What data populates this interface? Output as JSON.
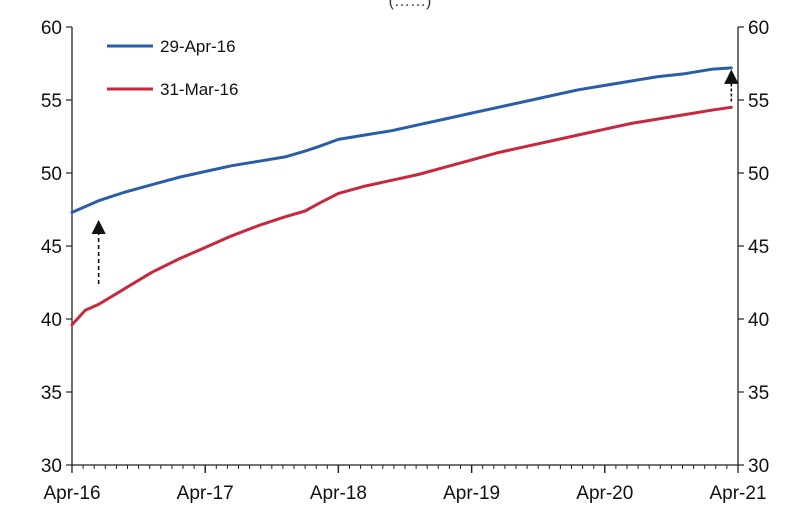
{
  "chart_data": {
    "type": "line",
    "title": "",
    "xlabel": "",
    "ylabel": "",
    "x_ticks": [
      "Apr-16",
      "Apr-17",
      "Apr-18",
      "Apr-19",
      "Apr-20",
      "Apr-21"
    ],
    "xlim": [
      "Apr-16",
      "Apr-21"
    ],
    "ylim": [
      30,
      60
    ],
    "y_ticks": [
      30,
      35,
      40,
      45,
      50,
      55,
      60
    ],
    "y_tick_labels": [
      "30",
      "35",
      "40",
      "45",
      "50",
      "55",
      "60"
    ],
    "secondary_y_axis": true,
    "grid": false,
    "legend_position": "top-left",
    "annotations": [
      "dashed upward arrow at start of series",
      "dashed upward arrow at end of series"
    ],
    "series": [
      {
        "name": "29-Apr-16",
        "color": "#2a5da8",
        "x": [
          0,
          0.2,
          0.4,
          0.6,
          0.8,
          1.0,
          1.2,
          1.4,
          1.6,
          1.75,
          1.85,
          2.0,
          2.2,
          2.4,
          2.6,
          2.8,
          3.0,
          3.2,
          3.4,
          3.6,
          3.8,
          4.0,
          4.2,
          4.4,
          4.6,
          4.8,
          4.95
        ],
        "values": [
          47.3,
          48.1,
          48.7,
          49.2,
          49.7,
          50.1,
          50.5,
          50.8,
          51.1,
          51.5,
          51.8,
          52.3,
          52.6,
          52.9,
          53.3,
          53.7,
          54.1,
          54.5,
          54.9,
          55.3,
          55.7,
          56.0,
          56.3,
          56.6,
          56.8,
          57.1,
          57.2
        ]
      },
      {
        "name": "31-Mar-16",
        "color": "#c8283f",
        "x": [
          0,
          0.1,
          0.2,
          0.4,
          0.6,
          0.8,
          1.0,
          1.2,
          1.4,
          1.6,
          1.75,
          1.85,
          2.0,
          2.2,
          2.4,
          2.6,
          2.8,
          3.0,
          3.2,
          3.4,
          3.6,
          3.8,
          4.0,
          4.2,
          4.4,
          4.6,
          4.8,
          4.95
        ],
        "values": [
          39.6,
          40.6,
          41.0,
          42.1,
          43.2,
          44.1,
          44.9,
          45.7,
          46.4,
          47.0,
          47.4,
          47.9,
          48.6,
          49.1,
          49.5,
          49.9,
          50.4,
          50.9,
          51.4,
          51.8,
          52.2,
          52.6,
          53.0,
          53.4,
          53.7,
          54.0,
          54.3,
          54.5
        ]
      }
    ]
  },
  "title_fragment": "(……)"
}
